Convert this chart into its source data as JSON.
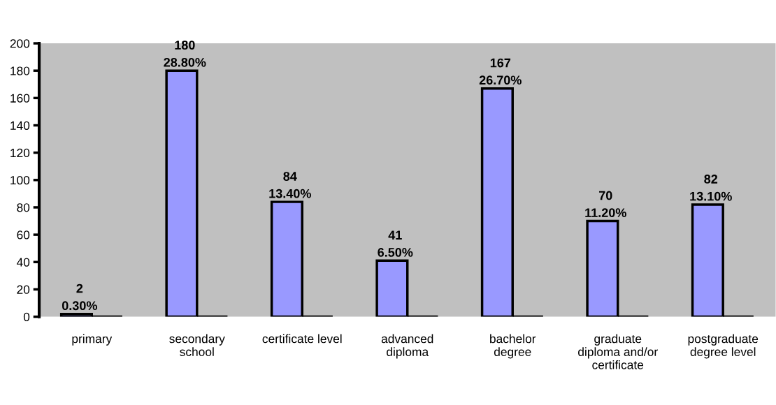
{
  "chart_data": {
    "type": "bar",
    "categories": [
      "primary",
      "secondary\nschool",
      "certificate level",
      "advanced\ndiploma",
      "bachelor\ndegree",
      "graduate\ndiploma and/or\ncertificate",
      "postgraduate\ndegree level"
    ],
    "series": [
      {
        "color": "#9999ff",
        "values": [
          2,
          180,
          84,
          41,
          167,
          70,
          82
        ],
        "value_labels": [
          "2\n0.30%",
          "180\n28.80%",
          "84\n13.40%",
          "41\n6.50%",
          "167\n26.70%",
          "70\n11.20%",
          "82\n13.10%"
        ]
      },
      {
        "color": "#000000",
        "values": [
          0,
          0,
          0,
          0,
          0,
          0,
          0
        ]
      }
    ],
    "ylim": [
      0,
      200
    ],
    "yticks": [
      0,
      20,
      40,
      60,
      80,
      100,
      120,
      140,
      160,
      180,
      200
    ],
    "grid": false,
    "legend": false
  }
}
